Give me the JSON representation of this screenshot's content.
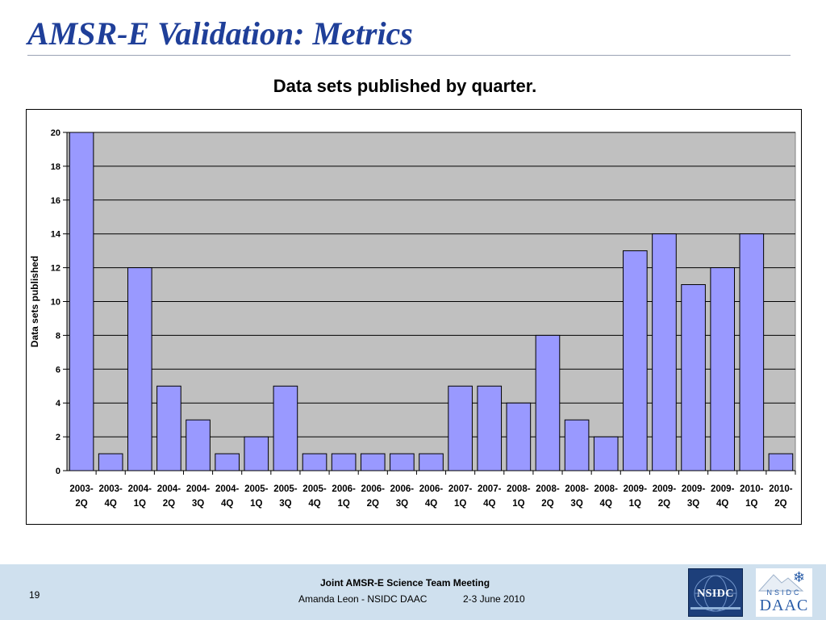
{
  "slide": {
    "title": "AMSR-E Validation: Metrics",
    "chart_heading": "Data sets published by quarter."
  },
  "footer": {
    "page_number": "19",
    "meeting": "Joint AMSR-E Science Team Meeting",
    "author": "Amanda Leon - NSIDC DAAC",
    "date": "2-3 June 2010",
    "logos": {
      "nsidc": "NSIDC",
      "daac_top": "NSIDC",
      "daac": "DAAC",
      "snowflake_icon": "❄"
    }
  },
  "colors": {
    "title": "#1f3f99",
    "bar_fill": "#9999ff",
    "plot_background": "#c0c0c0",
    "footer_background": "#cfe0ee"
  },
  "chart_data": {
    "type": "bar",
    "title": "Data sets published by quarter.",
    "xlabel": "",
    "ylabel": "Data sets published",
    "ylim": [
      0,
      20
    ],
    "yticks": [
      0,
      2,
      4,
      6,
      8,
      10,
      12,
      14,
      16,
      18,
      20
    ],
    "grid": true,
    "categories": [
      [
        "2003-",
        "2Q"
      ],
      [
        "2003-",
        "4Q"
      ],
      [
        "2004-",
        "1Q"
      ],
      [
        "2004-",
        "2Q"
      ],
      [
        "2004-",
        "3Q"
      ],
      [
        "2004-",
        "4Q"
      ],
      [
        "2005-",
        "1Q"
      ],
      [
        "2005-",
        "3Q"
      ],
      [
        "2005-",
        "4Q"
      ],
      [
        "2006-",
        "1Q"
      ],
      [
        "2006-",
        "2Q"
      ],
      [
        "2006-",
        "3Q"
      ],
      [
        "2006-",
        "4Q"
      ],
      [
        "2007-",
        "1Q"
      ],
      [
        "2007-",
        "4Q"
      ],
      [
        "2008-",
        "1Q"
      ],
      [
        "2008-",
        "2Q"
      ],
      [
        "2008-",
        "3Q"
      ],
      [
        "2008-",
        "4Q"
      ],
      [
        "2009-",
        "1Q"
      ],
      [
        "2009-",
        "2Q"
      ],
      [
        "2009-",
        "3Q"
      ],
      [
        "2009-",
        "4Q"
      ],
      [
        "2010-",
        "1Q"
      ],
      [
        "2010-",
        "2Q"
      ]
    ],
    "values": [
      20,
      1,
      12,
      5,
      3,
      1,
      2,
      5,
      1,
      1,
      1,
      1,
      1,
      5,
      5,
      4,
      8,
      3,
      2,
      13,
      14,
      11,
      12,
      14,
      1
    ]
  }
}
